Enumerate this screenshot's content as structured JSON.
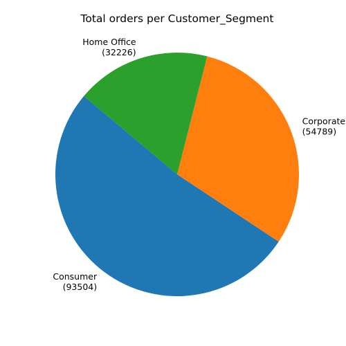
{
  "chart_data": {
    "type": "pie",
    "title": "Total orders per Customer_Segment",
    "slices": [
      {
        "label": "Consumer",
        "value": 93504,
        "value_text": "(93504)",
        "color": "#1f77b4"
      },
      {
        "label": "Corporate",
        "value": 54789,
        "value_text": "(54789)",
        "color": "#ff7f0e"
      },
      {
        "label": "Home Office",
        "value": 32226,
        "value_text": "(32226)",
        "color": "#2ca02c"
      }
    ],
    "start_angle_deg": 140,
    "direction": "counterclockwise",
    "legend": "none"
  }
}
